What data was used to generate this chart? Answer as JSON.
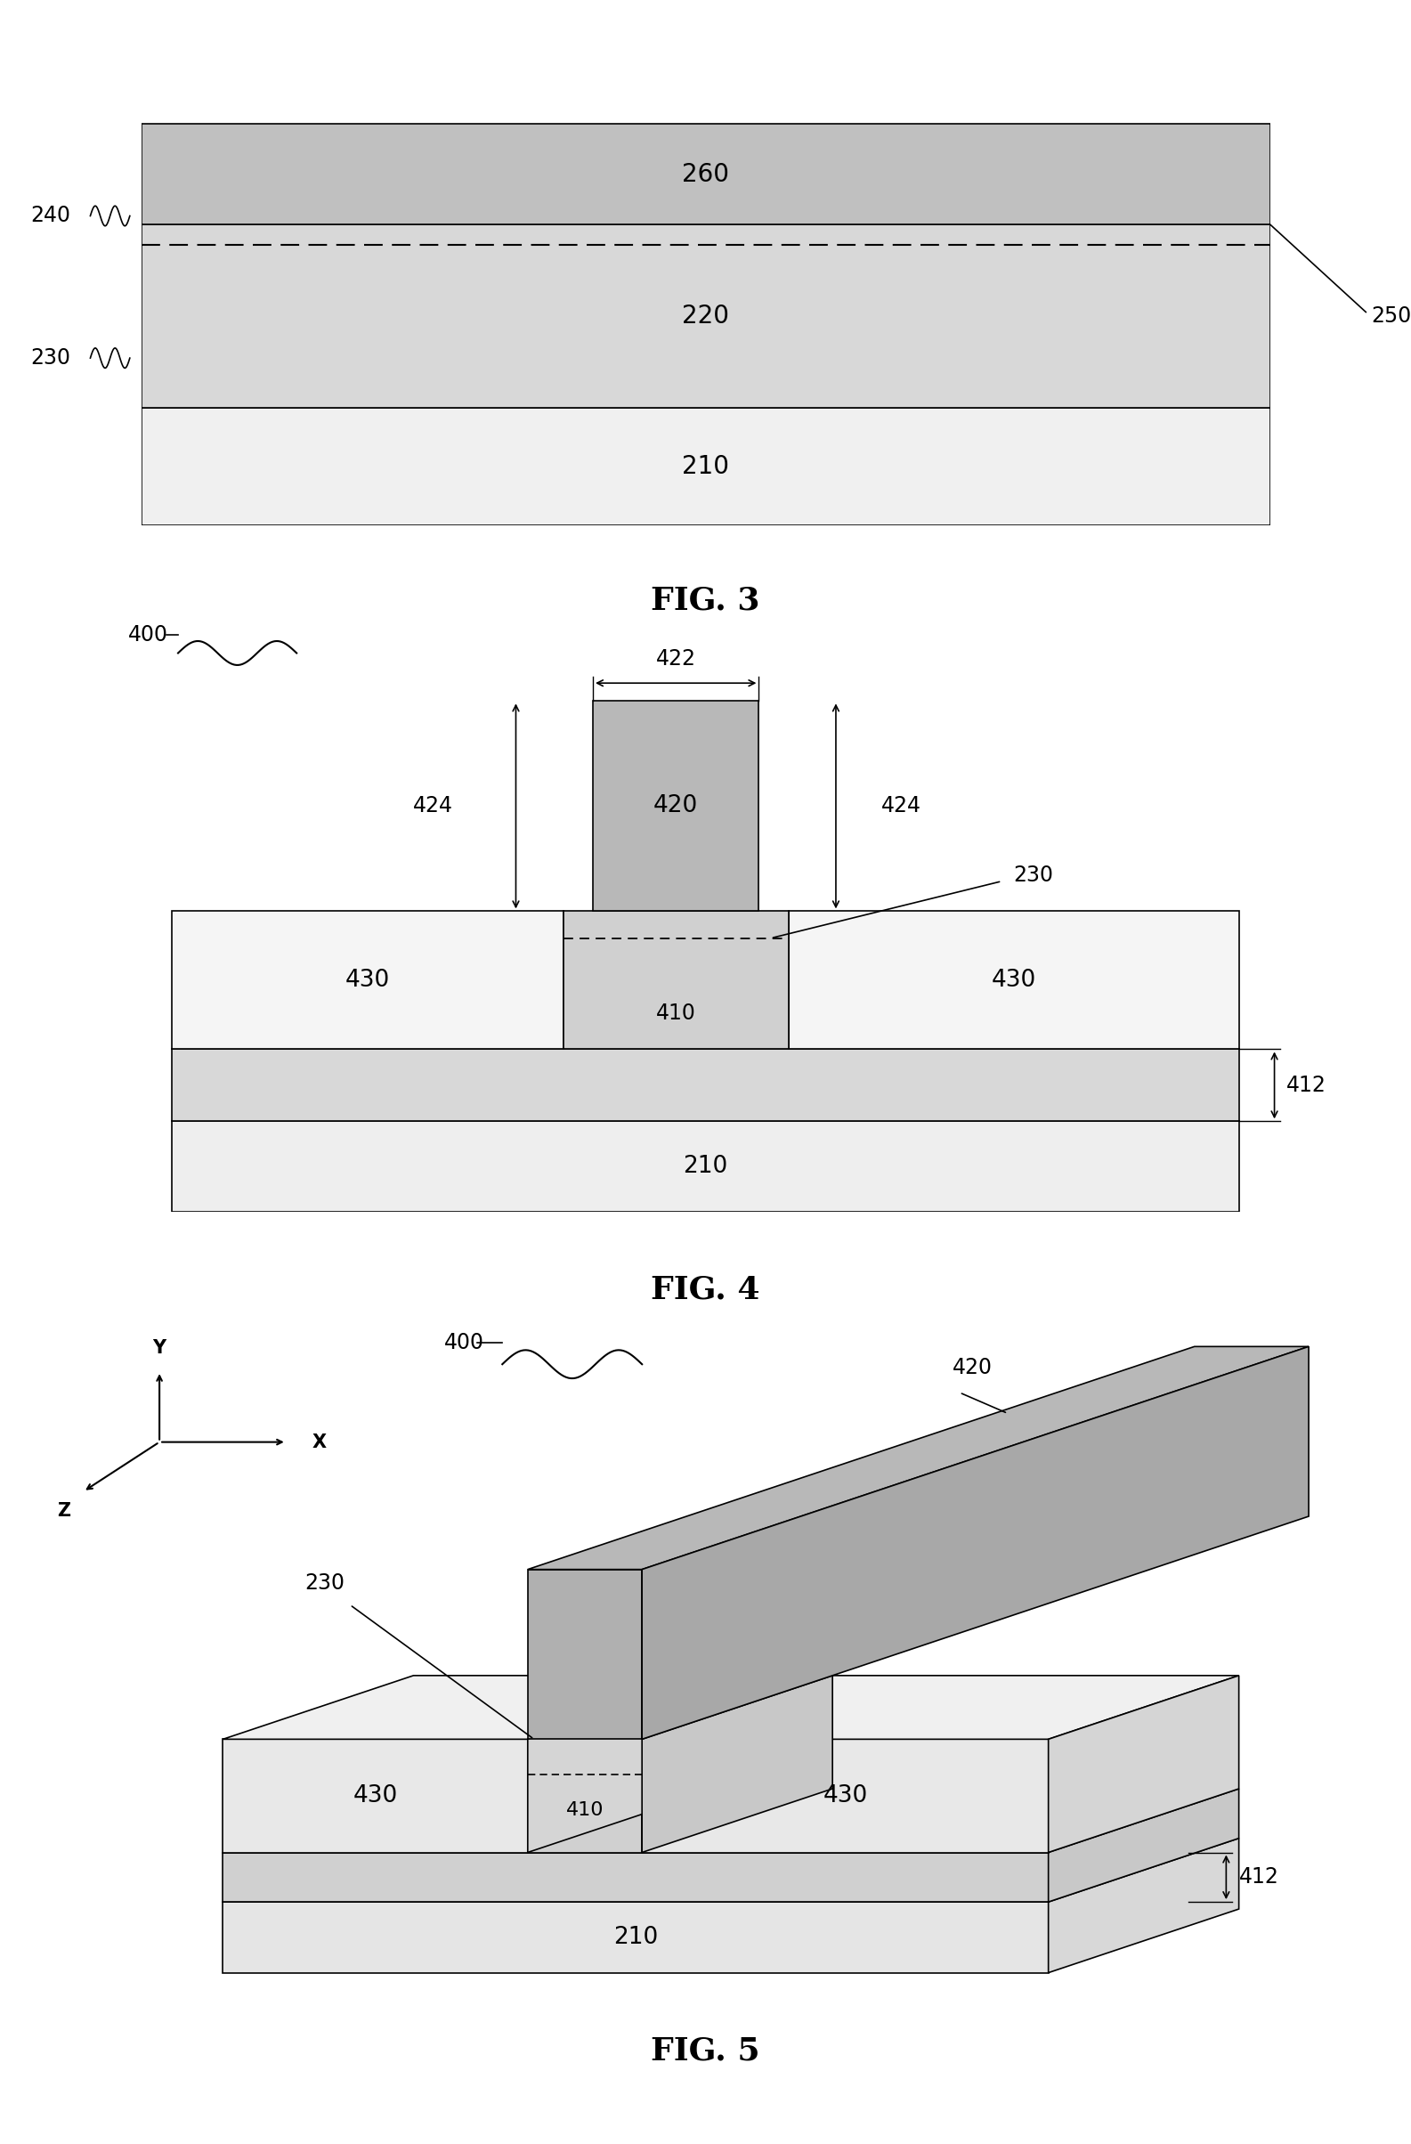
{
  "bg_color": "#ffffff",
  "fig3": {
    "title": "FIG. 3",
    "col_260": "#c0c0c0",
    "col_220": "#d8d8d8",
    "col_210": "#f0f0f0",
    "label_260": "260",
    "label_220": "220",
    "label_210": "210",
    "label_240": "240",
    "label_230": "230",
    "label_250": "250"
  },
  "fig4": {
    "title": "FIG. 4",
    "col_fin": "#b8b8b8",
    "col_mesa": "#d0d0d0",
    "col_430": "#f5f5f5",
    "col_buf": "#d8d8d8",
    "col_base": "#eeeeee",
    "label_400": "400",
    "label_420": "420",
    "label_410": "410",
    "label_430": "430",
    "label_412": "412",
    "label_210": "210",
    "label_230": "230",
    "label_422": "422",
    "label_424": "424"
  },
  "fig5": {
    "title": "FIG. 5",
    "col_top": "#f0f0f0",
    "col_front": "#e8e8e8",
    "col_side": "#d5d5d5",
    "col_buf_top": "#d8d8d8",
    "col_buf_front": "#d0d0d0",
    "col_buf_side": "#c8c8c8",
    "col_base_top": "#eeeeee",
    "col_base_front": "#e5e5e5",
    "col_base_side": "#d8d8d8",
    "col_fin_top": "#b8b8b8",
    "col_fin_front": "#b0b0b0",
    "col_fin_side": "#a8a8a8",
    "label_400": "400",
    "label_420": "420",
    "label_230": "230",
    "label_410": "410",
    "label_430": "430",
    "label_412": "412",
    "label_210": "210"
  }
}
